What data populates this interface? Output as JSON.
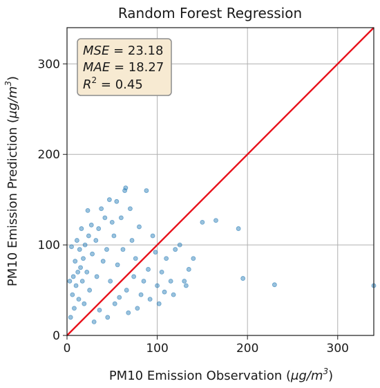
{
  "chart_data": {
    "type": "scatter",
    "title": "Random Forest Regression",
    "xlabel": "PM10 Emission Observation (μg/m³)",
    "xlabel_parts": {
      "main": "PM10 Emission Observation (",
      "unit_base": "μg/m",
      "unit_exp": "3",
      "close": ")"
    },
    "ylabel": "PM10 Emission Prediction (μg/m³)",
    "ylabel_parts": {
      "main": "PM10 Emission Prediction (",
      "unit_base": "μg/m",
      "unit_exp": "3",
      "close": ")"
    },
    "xlim": [
      0,
      340
    ],
    "ylim": [
      0,
      340
    ],
    "xticks": [
      0,
      100,
      200,
      300
    ],
    "yticks": [
      0,
      100,
      200,
      300
    ],
    "grid": true,
    "colors": {
      "points": "#1f77b4",
      "reference_line": "#e8101a",
      "stats_box_fill": "#f7ead2",
      "stats_box_edge": "#8c8c8c"
    },
    "reference_line": {
      "type": "y=x",
      "x": [
        0,
        340
      ],
      "y": [
        0,
        340
      ]
    },
    "stats": [
      {
        "name": "MSE",
        "value": "23.18"
      },
      {
        "name": "MAE",
        "value": "18.27"
      },
      {
        "name": "R",
        "exp": "2",
        "value": "0.45"
      }
    ],
    "series": [
      {
        "points": [
          [
            340,
            55
          ],
          [
            230,
            56
          ],
          [
            195,
            63
          ],
          [
            190,
            118
          ],
          [
            165,
            127
          ],
          [
            150,
            125
          ],
          [
            140,
            85
          ],
          [
            135,
            73
          ],
          [
            132,
            55
          ],
          [
            130,
            60
          ],
          [
            125,
            100
          ],
          [
            120,
            95
          ],
          [
            118,
            45
          ],
          [
            115,
            60
          ],
          [
            110,
            85
          ],
          [
            108,
            48
          ],
          [
            105,
            70
          ],
          [
            102,
            35
          ],
          [
            100,
            55
          ],
          [
            98,
            92
          ],
          [
            95,
            110
          ],
          [
            92,
            40
          ],
          [
            90,
            73
          ],
          [
            88,
            160
          ],
          [
            85,
            60
          ],
          [
            82,
            45
          ],
          [
            80,
            120
          ],
          [
            78,
            30
          ],
          [
            76,
            85
          ],
          [
            74,
            65
          ],
          [
            72,
            105
          ],
          [
            70,
            140
          ],
          [
            68,
            25
          ],
          [
            66,
            50
          ],
          [
            65,
            163
          ],
          [
            64,
            160
          ],
          [
            62,
            95
          ],
          [
            60,
            130
          ],
          [
            58,
            42
          ],
          [
            56,
            78
          ],
          [
            55,
            148
          ],
          [
            53,
            35
          ],
          [
            52,
            110
          ],
          [
            50,
            125
          ],
          [
            48,
            60
          ],
          [
            47,
            150
          ],
          [
            45,
            20
          ],
          [
            44,
            95
          ],
          [
            42,
            130
          ],
          [
            40,
            82
          ],
          [
            38,
            140
          ],
          [
            36,
            28
          ],
          [
            35,
            118
          ],
          [
            33,
            65
          ],
          [
            32,
            105
          ],
          [
            30,
            15
          ],
          [
            28,
            90
          ],
          [
            27,
            122
          ],
          [
            25,
            50
          ],
          [
            24,
            110
          ],
          [
            23,
            138
          ],
          [
            22,
            70
          ],
          [
            20,
            100
          ],
          [
            19,
            35
          ],
          [
            18,
            85
          ],
          [
            17,
            60
          ],
          [
            16,
            118
          ],
          [
            15,
            75
          ],
          [
            14,
            95
          ],
          [
            13,
            40
          ],
          [
            12,
            70
          ],
          [
            11,
            105
          ],
          [
            10,
            55
          ],
          [
            9,
            82
          ],
          [
            8,
            30
          ],
          [
            7,
            65
          ],
          [
            6,
            45
          ],
          [
            5,
            98
          ],
          [
            4,
            20
          ],
          [
            3,
            60
          ]
        ]
      }
    ]
  }
}
